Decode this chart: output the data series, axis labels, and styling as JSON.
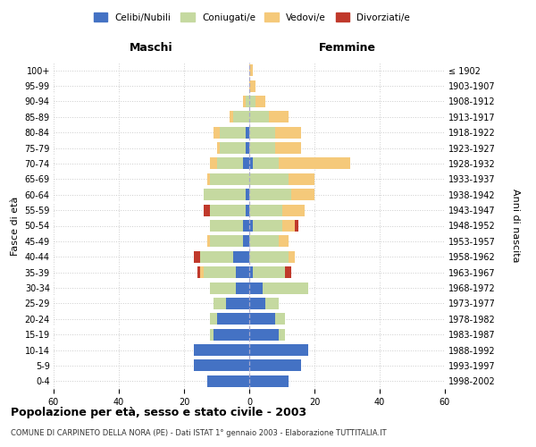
{
  "age_groups": [
    "0-4",
    "5-9",
    "10-14",
    "15-19",
    "20-24",
    "25-29",
    "30-34",
    "35-39",
    "40-44",
    "45-49",
    "50-54",
    "55-59",
    "60-64",
    "65-69",
    "70-74",
    "75-79",
    "80-84",
    "85-89",
    "90-94",
    "95-99",
    "100+"
  ],
  "birth_years": [
    "1998-2002",
    "1993-1997",
    "1988-1992",
    "1983-1987",
    "1978-1982",
    "1973-1977",
    "1968-1972",
    "1963-1967",
    "1958-1962",
    "1953-1957",
    "1948-1952",
    "1943-1947",
    "1938-1942",
    "1933-1937",
    "1928-1932",
    "1923-1927",
    "1918-1922",
    "1913-1917",
    "1908-1912",
    "1903-1907",
    "≤ 1902"
  ],
  "maschi": {
    "celibi": [
      13,
      17,
      17,
      11,
      10,
      7,
      4,
      4,
      5,
      2,
      2,
      1,
      1,
      0,
      2,
      1,
      1,
      0,
      0,
      0,
      0
    ],
    "coniugati": [
      0,
      0,
      0,
      1,
      2,
      4,
      8,
      10,
      10,
      10,
      10,
      11,
      13,
      12,
      8,
      8,
      8,
      5,
      1,
      0,
      0
    ],
    "vedovi": [
      0,
      0,
      0,
      0,
      0,
      0,
      0,
      1,
      0,
      1,
      0,
      0,
      0,
      1,
      2,
      1,
      2,
      1,
      1,
      0,
      0
    ],
    "divorziati": [
      0,
      0,
      0,
      0,
      0,
      0,
      0,
      1,
      2,
      0,
      0,
      2,
      0,
      0,
      0,
      0,
      0,
      0,
      0,
      0,
      0
    ]
  },
  "femmine": {
    "nubili": [
      12,
      16,
      18,
      9,
      8,
      5,
      4,
      1,
      0,
      0,
      1,
      0,
      0,
      0,
      1,
      0,
      0,
      0,
      0,
      0,
      0
    ],
    "coniugate": [
      0,
      0,
      0,
      2,
      3,
      4,
      14,
      10,
      12,
      9,
      9,
      10,
      13,
      12,
      8,
      8,
      8,
      6,
      2,
      0,
      0
    ],
    "vedove": [
      0,
      0,
      0,
      0,
      0,
      0,
      0,
      0,
      2,
      3,
      4,
      7,
      7,
      8,
      22,
      8,
      8,
      6,
      3,
      2,
      1
    ],
    "divorziate": [
      0,
      0,
      0,
      0,
      0,
      0,
      0,
      2,
      0,
      0,
      1,
      0,
      0,
      0,
      0,
      0,
      0,
      0,
      0,
      0,
      0
    ]
  },
  "colors": {
    "celibi_nubili": "#4472c4",
    "coniugati": "#c5d9a0",
    "vedovi": "#f5c97a",
    "divorziati": "#c0392b"
  },
  "xlim": 60,
  "title": "Popolazione per età, sesso e stato civile - 2003",
  "subtitle": "COMUNE DI CARPINETO DELLA NORA (PE) - Dati ISTAT 1° gennaio 2003 - Elaborazione TUTTITALIA.IT",
  "ylabel": "Fasce di età",
  "ylabel2": "Anni di nascita",
  "legend_labels": [
    "Celibi/Nubili",
    "Coniugati/e",
    "Vedovi/e",
    "Divorziati/e"
  ],
  "maschi_label": "Maschi",
  "femmine_label": "Femmine"
}
